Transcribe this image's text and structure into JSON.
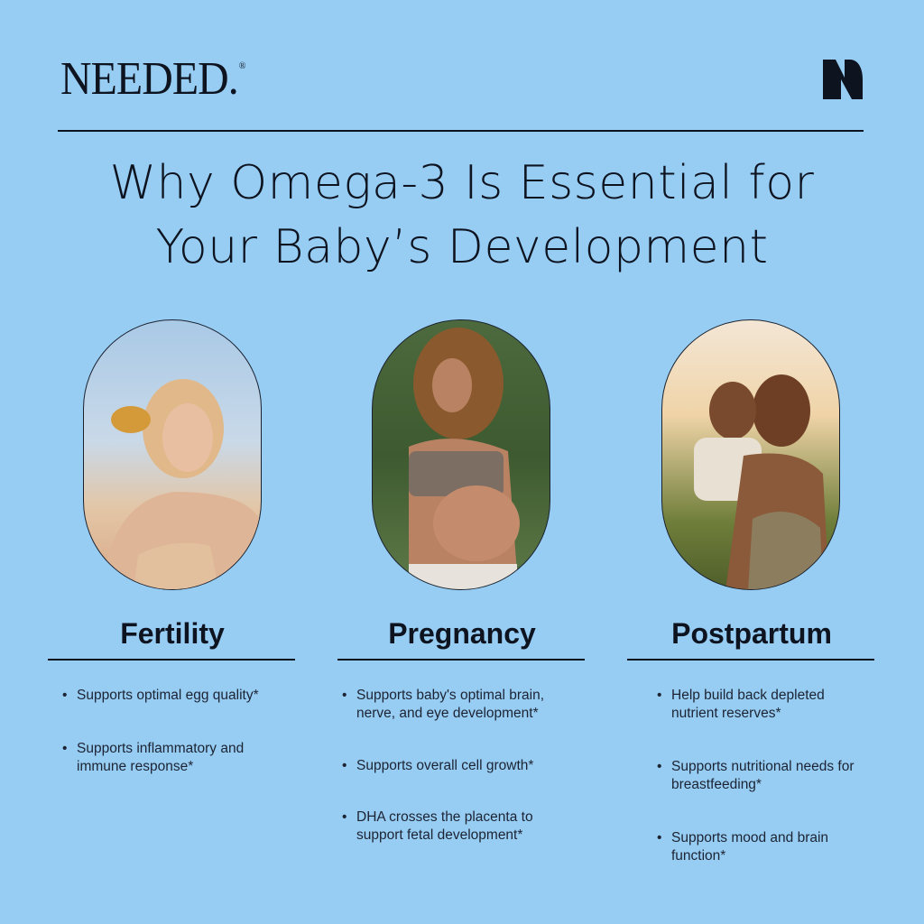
{
  "brand": {
    "name": "NEEDED.",
    "registered": "®",
    "monogram": "N"
  },
  "title": {
    "line1": "Why Omega-3 Is Essential for",
    "line2": "Your Baby’s Development"
  },
  "colors": {
    "background": "#97cdf3",
    "text": "#0e1320"
  },
  "columns": [
    {
      "heading": "Fertility",
      "photo": "woman-drinking-photo",
      "bullets": [
        "Supports optimal egg quality*",
        "Supports inflammatory and immune response*"
      ]
    },
    {
      "heading": "Pregnancy",
      "photo": "pregnant-woman-photo",
      "bullets": [
        "Supports baby's optimal brain, nerve, and eye development*",
        "Supports overall cell growth*",
        "DHA crosses the placenta to support fetal development*"
      ]
    },
    {
      "heading": "Postpartum",
      "photo": "mother-and-baby-photo",
      "bullets": [
        "Help build back depleted nutrient reserves*",
        "Supports nutritional needs for breastfeeding*",
        "Supports mood and brain function*"
      ]
    }
  ]
}
